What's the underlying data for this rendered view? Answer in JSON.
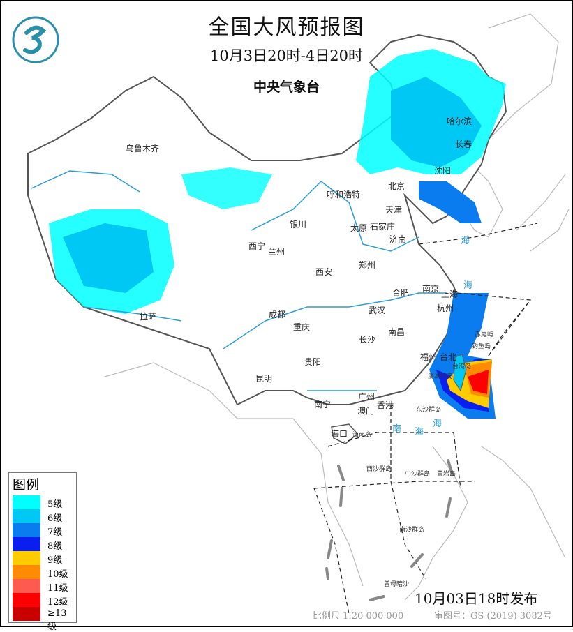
{
  "header": {
    "title": "全国大风预报图",
    "subtitle": "10月3日20时-4日20时",
    "agency": "中央气象台"
  },
  "legend": {
    "title": "图例",
    "items": [
      {
        "label": "5级",
        "color": "#00ffff"
      },
      {
        "label": "6级",
        "color": "#00c8f5"
      },
      {
        "label": "7级",
        "color": "#0a7cf0"
      },
      {
        "label": "8级",
        "color": "#0a1ef0"
      },
      {
        "label": "9级",
        "color": "#ffcc00"
      },
      {
        "label": "10级",
        "color": "#ff8c00"
      },
      {
        "label": "11级",
        "color": "#ff5a50"
      },
      {
        "label": "12级",
        "color": "#ff0000"
      },
      {
        "label": "≥13级",
        "color": "#c80000"
      }
    ]
  },
  "footer": {
    "issued": "10月03日18时发布",
    "scale": "比例尺 1:20 000 000",
    "review_number": "审图号：GS (2019) 3082号"
  },
  "cities": [
    "乌鲁木齐",
    "哈尔滨",
    "长春",
    "沈阳",
    "呼和浩特",
    "北京",
    "天津",
    "银川",
    "太原",
    "石家庄",
    "济南",
    "西宁",
    "兰州",
    "郑州",
    "西安",
    "南京",
    "合肥",
    "上海",
    "拉萨",
    "成都",
    "武汉",
    "杭州",
    "重庆",
    "南昌",
    "长沙",
    "福州",
    "台北",
    "贵阳",
    "昆明",
    "南宁",
    "广州",
    "澳门",
    "香港",
    "海口"
  ],
  "islands": [
    "赤尾屿",
    "钓鱼岛",
    "台湾岛",
    "澎湖列岛",
    "东沙群岛",
    "海南岛",
    "西沙群岛",
    "中沙群岛",
    "黄岩岛",
    "南沙群岛",
    "曾母暗沙"
  ],
  "seas": [
    "海",
    "海",
    "南",
    "海",
    "海"
  ],
  "colors": {
    "land_border": "#555555",
    "river": "#2a9fd6",
    "neighbor": "#bbbbbb"
  }
}
